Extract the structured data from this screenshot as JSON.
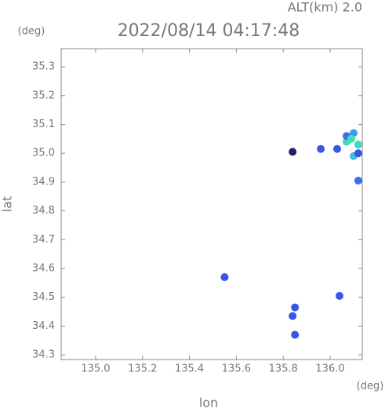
{
  "chart_data": {
    "type": "scatter",
    "title": "2022/08/14 04:17:48",
    "subtitle": "ALT(km) 2.0",
    "y_unit": "(deg)",
    "x_unit": "(deg)",
    "xlabel": "lon",
    "ylabel": "lat",
    "x": [
      135.84,
      135.96,
      136.03,
      136.07,
      136.1,
      136.12,
      136.1,
      136.07,
      136.12,
      136.09,
      136.12,
      135.55,
      136.04,
      135.85,
      135.84,
      135.85
    ],
    "values": [
      35.005,
      35.015,
      35.015,
      35.04,
      35.07,
      35.03,
      34.99,
      35.06,
      35.0,
      35.05,
      34.905,
      34.57,
      34.505,
      34.465,
      34.435,
      34.37
    ],
    "colors": [
      "#222266",
      "#3a55e8",
      "#3a55e8",
      "#3fd8c8",
      "#3a9ef0",
      "#3fd8c8",
      "#3fc0d8",
      "#3a70f0",
      "#3a55e8",
      "#46e0a8",
      "#3a6ef0",
      "#3a55e8",
      "#3a55e8",
      "#3a55e8",
      "#3a55e8",
      "#3a55e8"
    ],
    "xlim": [
      134.853,
      136.137
    ],
    "ylim": [
      34.284,
      35.363
    ],
    "xticks": [
      {
        "value": 135,
        "label": "135.0"
      },
      135.2,
      135.4,
      135.6,
      135.8,
      {
        "value": 136,
        "label": "136.0"
      }
    ],
    "yticks": [
      34.3,
      34.4,
      34.5,
      34.6,
      34.7,
      34.8,
      34.9,
      {
        "value": 35,
        "label": "35.0"
      },
      35.1,
      35.2,
      35.3
    ],
    "grid": false
  }
}
